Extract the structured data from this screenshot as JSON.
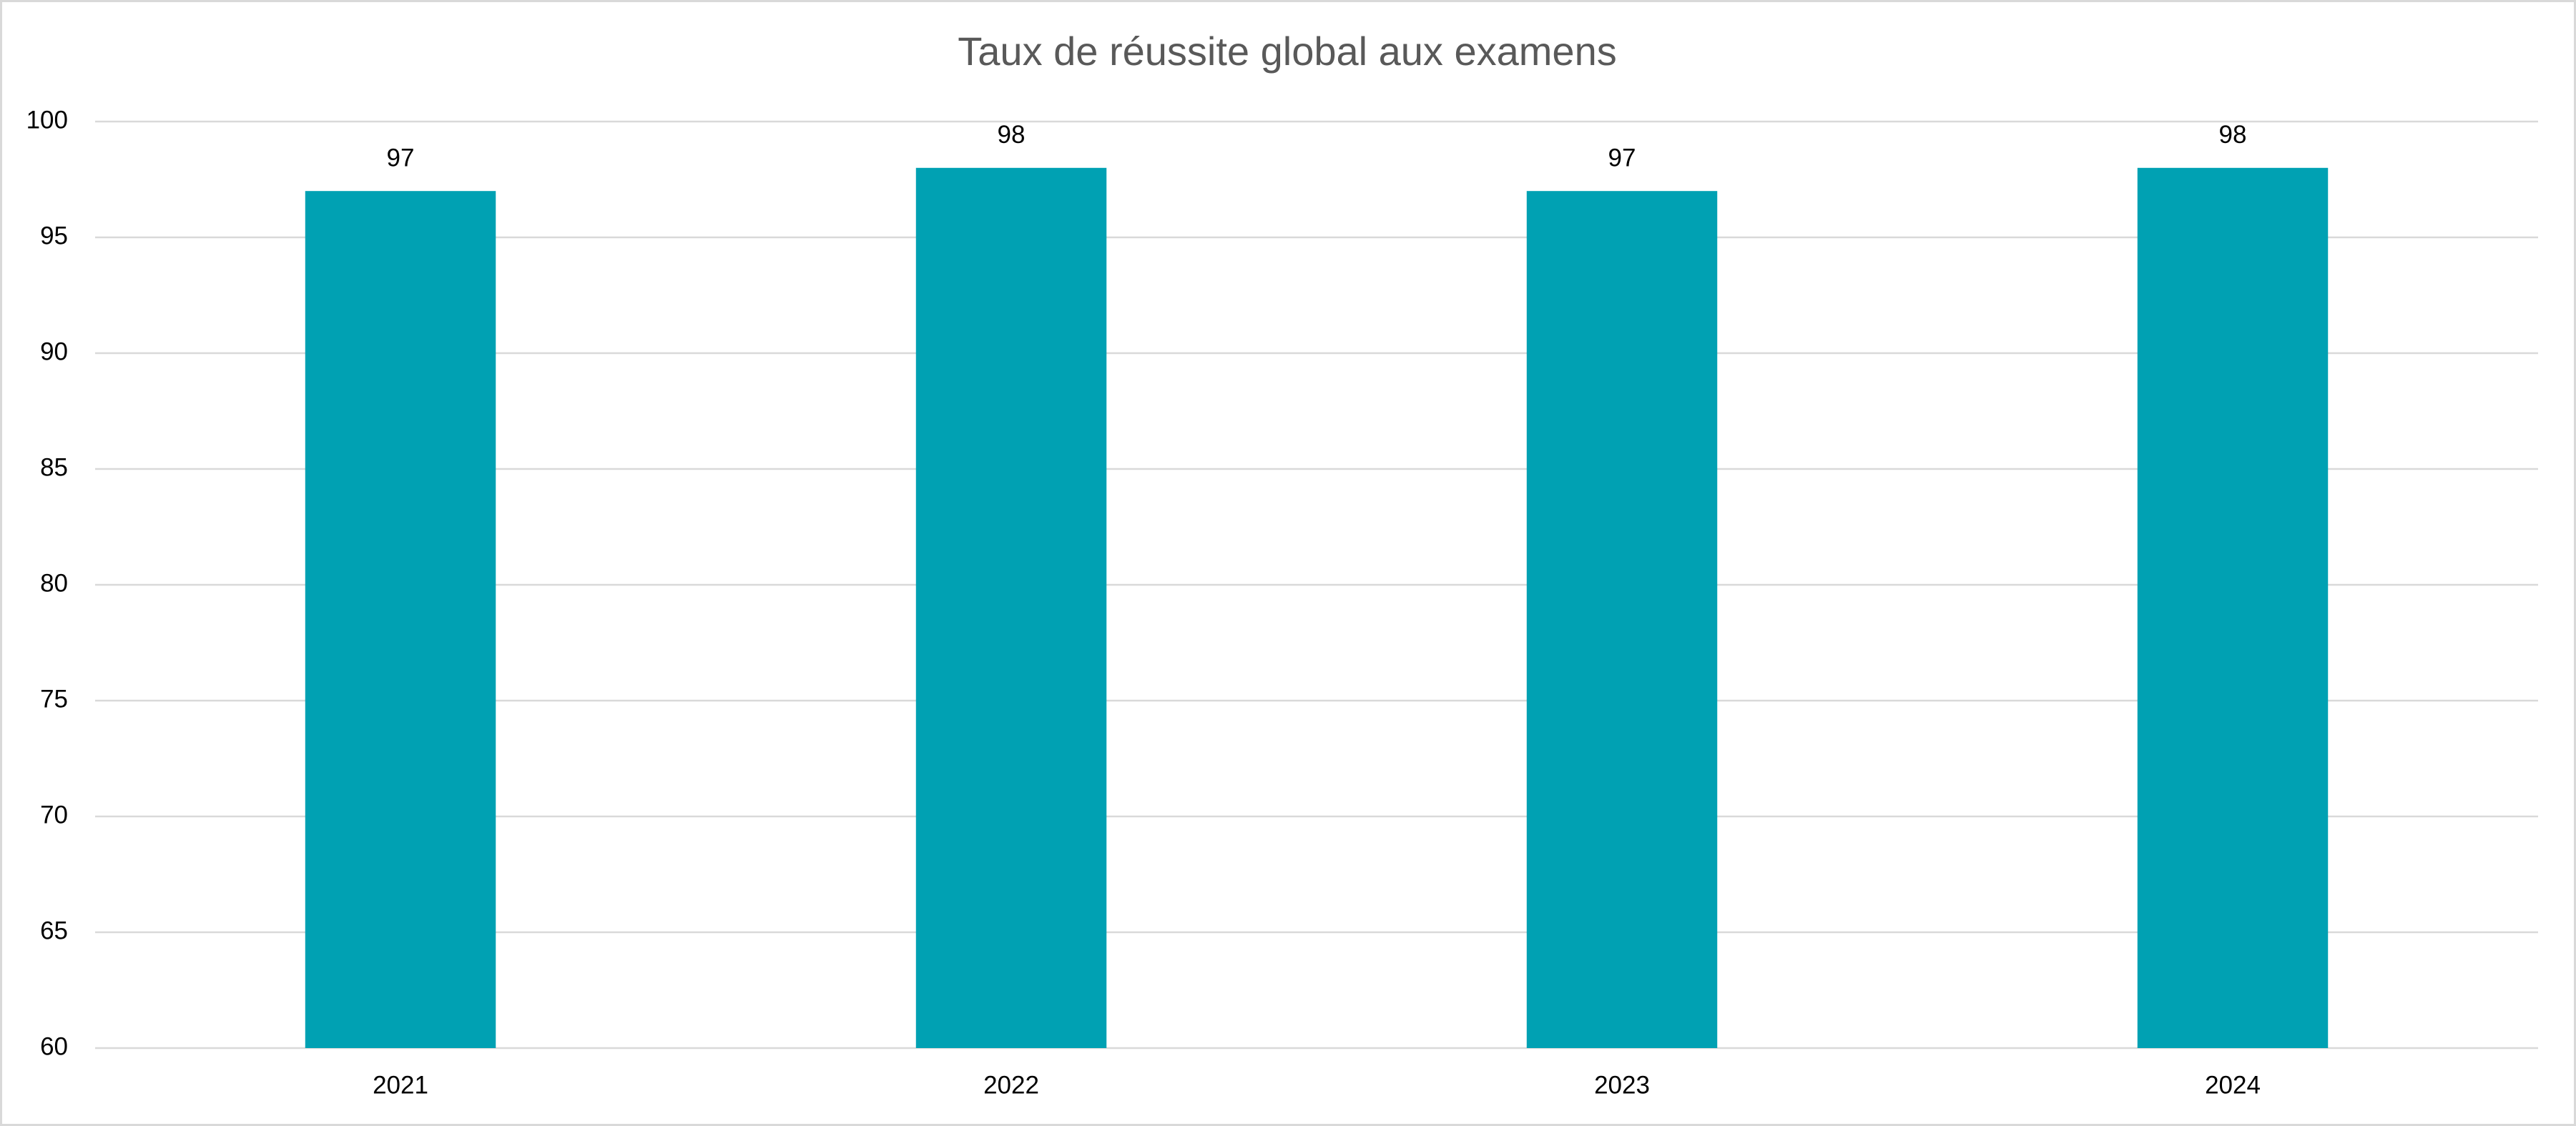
{
  "chart_data": {
    "type": "bar",
    "title": "Taux de réussite global aux examens",
    "categories": [
      "2021",
      "2022",
      "2023",
      "2024"
    ],
    "values": [
      97,
      98,
      97,
      98
    ],
    "color": "#00a1b3",
    "ylim": [
      60,
      100
    ],
    "yticks": [
      60,
      65,
      70,
      75,
      80,
      85,
      90,
      95,
      100
    ],
    "grid": true,
    "data_labels": true
  }
}
